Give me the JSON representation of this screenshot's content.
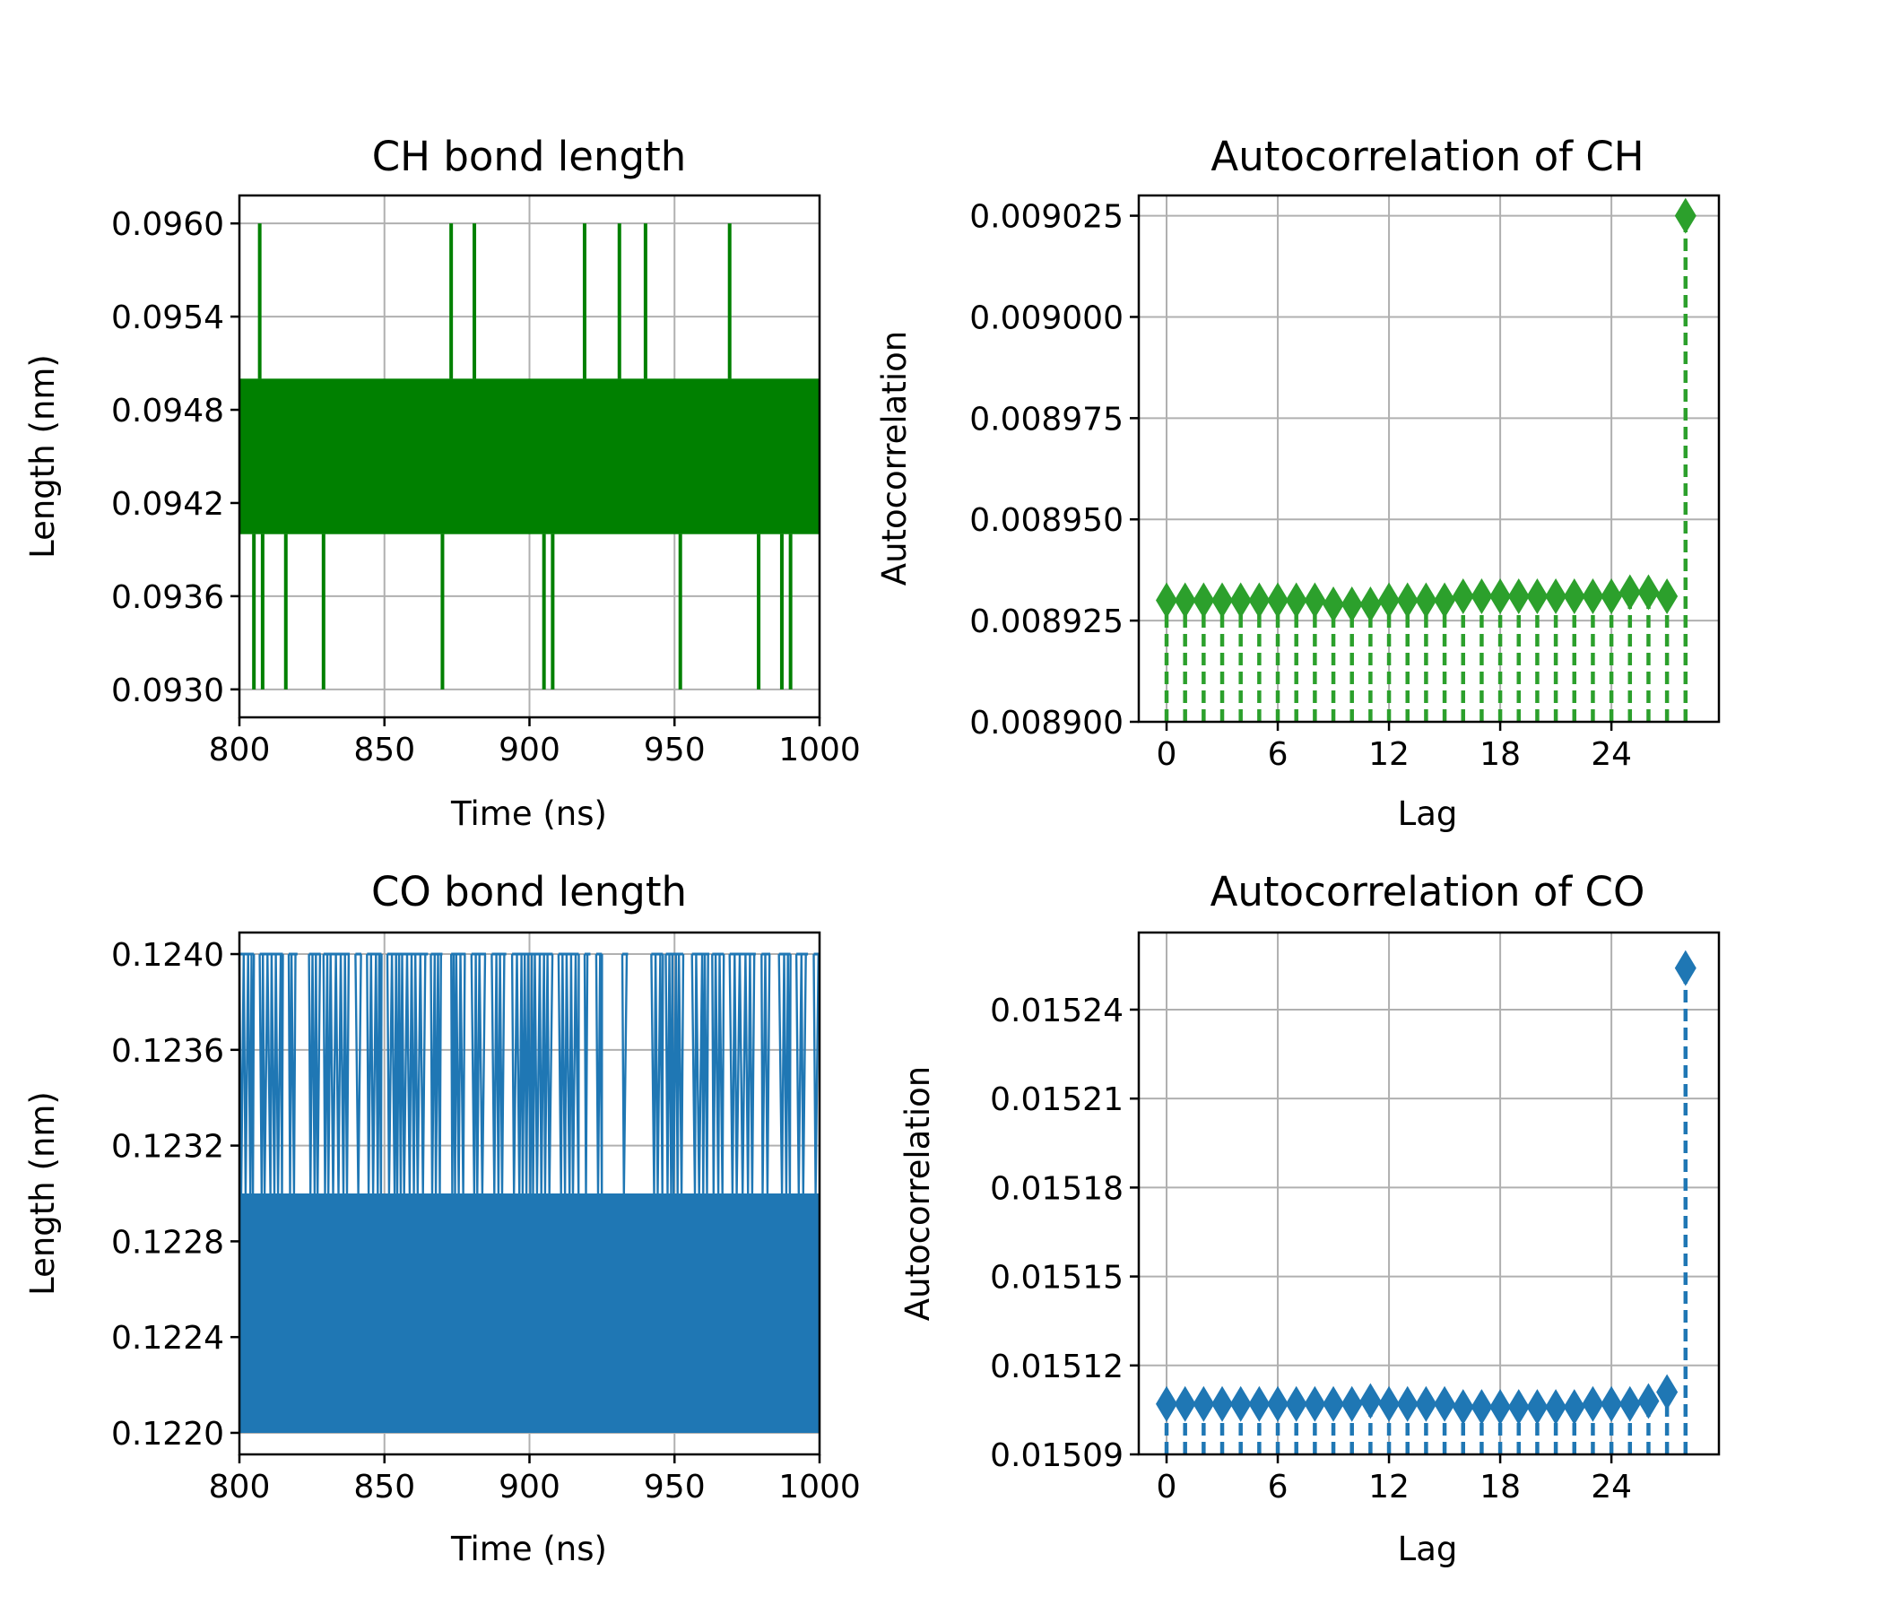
{
  "chart_data": [
    {
      "type": "line",
      "title": "CH bond length",
      "xlabel": "Time (ns)",
      "ylabel": "Length (nm)",
      "xlim": [
        800,
        1000
      ],
      "ylim": [
        0.09282,
        0.09618
      ],
      "xticks": [
        "800",
        "850",
        "900",
        "950",
        "1000"
      ],
      "yticks": [
        "0.0930",
        "0.0936",
        "0.0942",
        "0.0948",
        "0.0954",
        "0.0960"
      ],
      "grid": true,
      "series": [
        {
          "color": "#008000",
          "band": [
            0.094,
            0.095
          ],
          "spikes_high": [
            807,
            873,
            881,
            919,
            931,
            940,
            969
          ],
          "spikes_low": [
            805,
            808,
            816,
            829,
            870,
            905,
            908,
            952,
            979,
            987,
            990
          ],
          "high_value": 0.096,
          "low_value": 0.093
        }
      ]
    },
    {
      "type": "scatter",
      "title": "Autocorrelation of CH",
      "xlabel": "Lag",
      "ylabel": "Autocorrelation",
      "xlim": [
        -1.5,
        29.8
      ],
      "ylim": [
        0.0089,
        0.00903
      ],
      "xticks": [
        "0",
        "6",
        "12",
        "18",
        "24"
      ],
      "yticks": [
        "0.008900",
        "0.008925",
        "0.008950",
        "0.008975",
        "0.009000",
        "0.009025"
      ],
      "grid": true,
      "marker": "diamond",
      "stem_style": "dashed",
      "color": "#2ca02c",
      "x": [
        0,
        1,
        2,
        3,
        4,
        5,
        6,
        7,
        8,
        9,
        10,
        11,
        12,
        13,
        14,
        15,
        16,
        17,
        18,
        19,
        20,
        21,
        22,
        23,
        24,
        25,
        26,
        27,
        28
      ],
      "values": [
        0.00893,
        0.00893,
        0.00893,
        0.00893,
        0.00893,
        0.00893,
        0.00893,
        0.00893,
        0.00893,
        0.008929,
        0.008929,
        0.008929,
        0.00893,
        0.00893,
        0.00893,
        0.00893,
        0.008931,
        0.008931,
        0.008931,
        0.008931,
        0.008931,
        0.008931,
        0.008931,
        0.008931,
        0.008931,
        0.008932,
        0.008932,
        0.008931,
        0.009025
      ]
    },
    {
      "type": "line",
      "title": "CO bond length",
      "xlabel": "Time (ns)",
      "ylabel": "Length (nm)",
      "xlim": [
        800,
        1000
      ],
      "ylim": [
        0.12191,
        0.12409
      ],
      "xticks": [
        "800",
        "850",
        "900",
        "950",
        "1000"
      ],
      "yticks": [
        "0.1220",
        "0.1224",
        "0.1228",
        "0.1232",
        "0.1236",
        "0.1240"
      ],
      "grid": true,
      "series": [
        {
          "color": "#1f77b4",
          "band": [
            0.122,
            0.123
          ],
          "top_value": 0.124,
          "top_segments": [
            [
              800,
              805
            ],
            [
              807,
              815
            ],
            [
              817,
              820
            ],
            [
              824,
              828
            ],
            [
              829,
              838
            ],
            [
              840,
              842
            ],
            [
              844,
              849
            ],
            [
              851,
              865
            ],
            [
              866,
              870
            ],
            [
              873,
              878
            ],
            [
              880,
              885
            ],
            [
              887,
              892
            ],
            [
              894,
              908
            ],
            [
              910,
              917
            ],
            [
              919,
              921
            ],
            [
              923,
              925
            ],
            [
              932,
              934
            ],
            [
              942,
              946
            ],
            [
              947,
              953
            ],
            [
              956,
              962
            ],
            [
              963,
              967
            ],
            [
              969,
              978
            ],
            [
              980,
              983
            ],
            [
              986,
              990
            ],
            [
              992,
              996
            ],
            [
              998,
              1000
            ]
          ]
        }
      ]
    },
    {
      "type": "scatter",
      "title": "Autocorrelation of CO",
      "xlabel": "Lag",
      "ylabel": "Autocorrelation",
      "xlim": [
        -1.5,
        29.8
      ],
      "ylim": [
        0.01509,
        0.015266
      ],
      "xticks": [
        "0",
        "6",
        "12",
        "18",
        "24"
      ],
      "yticks": [
        "0.01509",
        "0.01512",
        "0.01515",
        "0.01518",
        "0.01521",
        "0.01524"
      ],
      "grid": true,
      "marker": "diamond",
      "stem_style": "dashed",
      "color": "#1f77b4",
      "x": [
        0,
        1,
        2,
        3,
        4,
        5,
        6,
        7,
        8,
        9,
        10,
        11,
        12,
        13,
        14,
        15,
        16,
        17,
        18,
        19,
        20,
        21,
        22,
        23,
        24,
        25,
        26,
        27,
        28
      ],
      "values": [
        0.015107,
        0.015107,
        0.015107,
        0.015107,
        0.015107,
        0.015107,
        0.015107,
        0.015107,
        0.015107,
        0.015107,
        0.015107,
        0.015108,
        0.015107,
        0.015107,
        0.015107,
        0.015107,
        0.015106,
        0.015106,
        0.015106,
        0.015106,
        0.015106,
        0.015106,
        0.015106,
        0.015107,
        0.015107,
        0.015107,
        0.015108,
        0.015111,
        0.015254
      ]
    }
  ]
}
